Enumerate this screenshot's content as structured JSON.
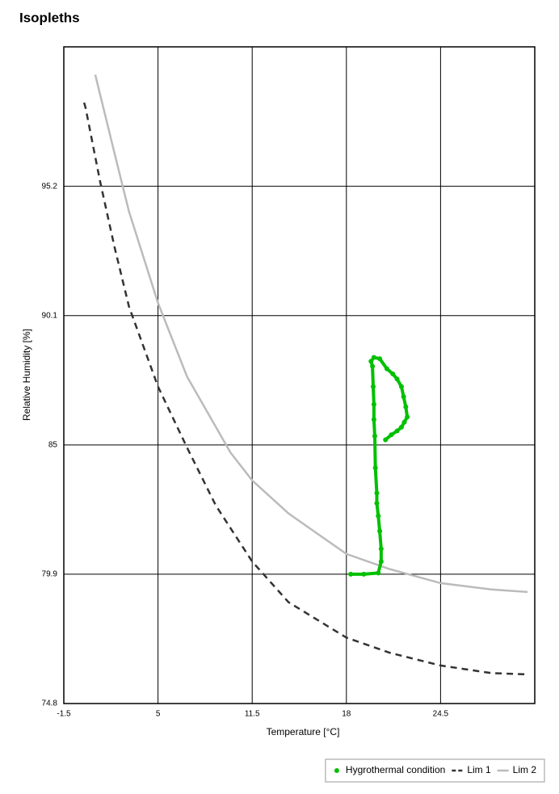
{
  "chart_data": {
    "type": "line",
    "title": "Isopleths",
    "x_label": "Temperature [°C]",
    "y_label": "Relative Humidity [%]",
    "xlim": [
      -1.5,
      31
    ],
    "ylim": [
      74.8,
      100.7
    ],
    "xticks": [
      -1.5,
      5,
      11.5,
      18,
      24.5
    ],
    "yticks": [
      74.8,
      79.9,
      85,
      90.1,
      95.2
    ],
    "grid": true,
    "legend": "bottom-right",
    "series": [
      {
        "name": "Hygrothermal condition",
        "color": "#00c000",
        "style": "dots",
        "x": [
          18.3,
          19.2,
          20.2,
          20.4,
          20.4,
          20.3,
          20.2,
          20.1,
          20.1,
          20.0,
          19.96,
          19.9,
          19.9,
          19.85,
          19.8,
          19.7,
          19.9,
          20.3,
          20.8,
          21.2,
          21.5,
          21.8,
          21.95,
          22.1,
          22.2,
          22.0,
          21.8,
          21.5,
          21.1,
          20.7
        ],
        "values": [
          79.9,
          79.9,
          79.95,
          80.4,
          80.9,
          81.6,
          82.2,
          82.7,
          83.1,
          84.1,
          85.35,
          86.0,
          86.6,
          87.3,
          88.1,
          88.3,
          88.45,
          88.4,
          88.0,
          87.8,
          87.6,
          87.3,
          86.9,
          86.5,
          86.1,
          85.9,
          85.7,
          85.55,
          85.4,
          85.2
        ]
      },
      {
        "name": "Lim 1",
        "color": "#333333",
        "style": "dashed",
        "x": [
          -0.1,
          0,
          1,
          2,
          3,
          5,
          7,
          9,
          11.5,
          14,
          18,
          21,
          24.5,
          28,
          30.5
        ],
        "values": [
          98.5,
          98.3,
          95.4,
          92.8,
          90.45,
          87.3,
          84.9,
          82.6,
          80.4,
          78.8,
          77.4,
          76.8,
          76.3,
          76.0,
          75.95
        ]
      },
      {
        "name": "Lim 2",
        "color": "#bbbbbb",
        "style": "solid",
        "x": [
          0.67,
          2,
          3,
          5,
          7,
          10,
          11.5,
          14,
          18,
          21,
          24.5,
          28,
          30.5
        ],
        "values": [
          99.6,
          96.5,
          94.2,
          90.6,
          87.7,
          84.7,
          83.6,
          82.3,
          80.7,
          80.1,
          79.55,
          79.3,
          79.2
        ]
      }
    ]
  }
}
